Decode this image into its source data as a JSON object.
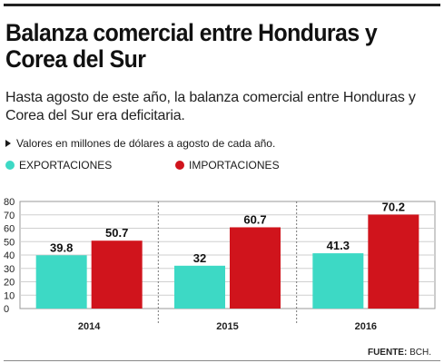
{
  "title": "Balanza comercial entre Honduras y Corea del Sur",
  "subtitle": "Hasta agosto de este año, la balanza comercial entre Honduras y Corea del Sur era deficitaria.",
  "note": "Valores en millones de dólares a agosto de cada año.",
  "source_label": "FUENTE:",
  "source_value": "BCH.",
  "colors": {
    "exportaciones": "#3dd9c5",
    "importaciones": "#d0141c"
  },
  "chart_data": {
    "type": "bar",
    "categories": [
      "2014",
      "2015",
      "2016"
    ],
    "series": [
      {
        "name": "EXPORTACIONES",
        "values": [
          39.8,
          32,
          41.3
        ]
      },
      {
        "name": "IMPORTACIONES",
        "values": [
          50.7,
          60.7,
          70.2
        ]
      }
    ],
    "data_labels": [
      [
        "39.8",
        "32",
        "41.3"
      ],
      [
        "50.7",
        "60.7",
        "70.2"
      ]
    ],
    "ylim": [
      0,
      80
    ],
    "yticks": [
      0,
      10,
      20,
      30,
      40,
      50,
      60,
      70,
      80
    ],
    "grid": true,
    "legend": "top-left"
  }
}
